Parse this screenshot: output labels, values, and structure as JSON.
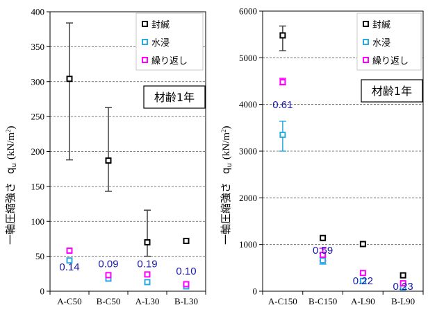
{
  "colors": {
    "sealed": "#000000",
    "immersion": "#29abe2",
    "repeated": "#ff00ff",
    "errorbar": "#404040",
    "annotation": "#1a1aa8"
  },
  "chart_data": [
    {
      "type": "scatter",
      "ylabel_main": "一軸圧縮強さ",
      "ylabel_symbol": "q",
      "ylabel_sub": "u",
      "ylabel_unit_open": "(kN/m",
      "ylabel_unit_sup": "2",
      "ylabel_unit_close": ")",
      "ylim": [
        0,
        400
      ],
      "yticks": [
        0,
        50,
        100,
        150,
        200,
        250,
        300,
        350,
        400
      ],
      "categories": [
        "A-C50",
        "B-C50",
        "A-L30",
        "B-L30"
      ],
      "grid": "horizontal dashed",
      "legend_position": "top-right",
      "age_label": "材齢1年",
      "series": [
        {
          "name": "封緘",
          "color_key": "sealed",
          "values": [
            304,
            187,
            70,
            72
          ],
          "err_low": [
            188,
            143,
            50,
            null
          ],
          "err_high": [
            384,
            263,
            116,
            null
          ]
        },
        {
          "name": "水浸",
          "color_key": "immersion",
          "values": [
            44,
            18,
            13,
            7
          ]
        },
        {
          "name": "繰り返し",
          "color_key": "repeated",
          "values": [
            58,
            23,
            24,
            10
          ]
        }
      ],
      "annotations": [
        {
          "category": "A-C50",
          "text": "0.14",
          "y": 30
        },
        {
          "category": "B-C50",
          "text": "0.09",
          "y": 34
        },
        {
          "category": "A-L30",
          "text": "0.19",
          "y": 34
        },
        {
          "category": "B-L30",
          "text": "0.10",
          "y": 24
        }
      ]
    },
    {
      "type": "scatter",
      "ylabel_main": "一軸圧縮強さ",
      "ylabel_symbol": "q",
      "ylabel_sub": "u",
      "ylabel_unit_open": "(kN/m",
      "ylabel_unit_sup": "2",
      "ylabel_unit_close": ")",
      "ylim": [
        0,
        6000
      ],
      "yticks": [
        0,
        1000,
        2000,
        3000,
        4000,
        5000,
        6000
      ],
      "categories": [
        "A-C150",
        "B-C150",
        "A-L90",
        "B-L90"
      ],
      "grid": "horizontal dashed",
      "legend_position": "top-right",
      "age_label": "材齢1年",
      "series": [
        {
          "name": "封緘",
          "color_key": "sealed",
          "values": [
            5480,
            1140,
            1010,
            340
          ],
          "err_low": [
            5150,
            null,
            null,
            null
          ],
          "err_high": [
            5680,
            null,
            null,
            null
          ]
        },
        {
          "name": "水浸",
          "color_key": "immersion",
          "values": [
            3350,
            660,
            220,
            80
          ],
          "err_low": [
            3000,
            580,
            null,
            null
          ],
          "err_high": [
            3640,
            730,
            null,
            null
          ]
        },
        {
          "name": "繰り返し",
          "color_key": "repeated",
          "values": [
            4480,
            780,
            390,
            170
          ],
          "err_low": [
            4420,
            650,
            null,
            null
          ],
          "err_high": [
            4560,
            920,
            null,
            null
          ]
        }
      ],
      "annotations": [
        {
          "category": "A-C150",
          "text": "0.61",
          "y": 3920
        },
        {
          "category": "B-C150",
          "text": "0.59",
          "y": 800
        },
        {
          "category": "A-L90",
          "text": "0.22",
          "y": 150
        },
        {
          "category": "B-L90",
          "text": "0.23",
          "y": 30
        }
      ]
    }
  ]
}
